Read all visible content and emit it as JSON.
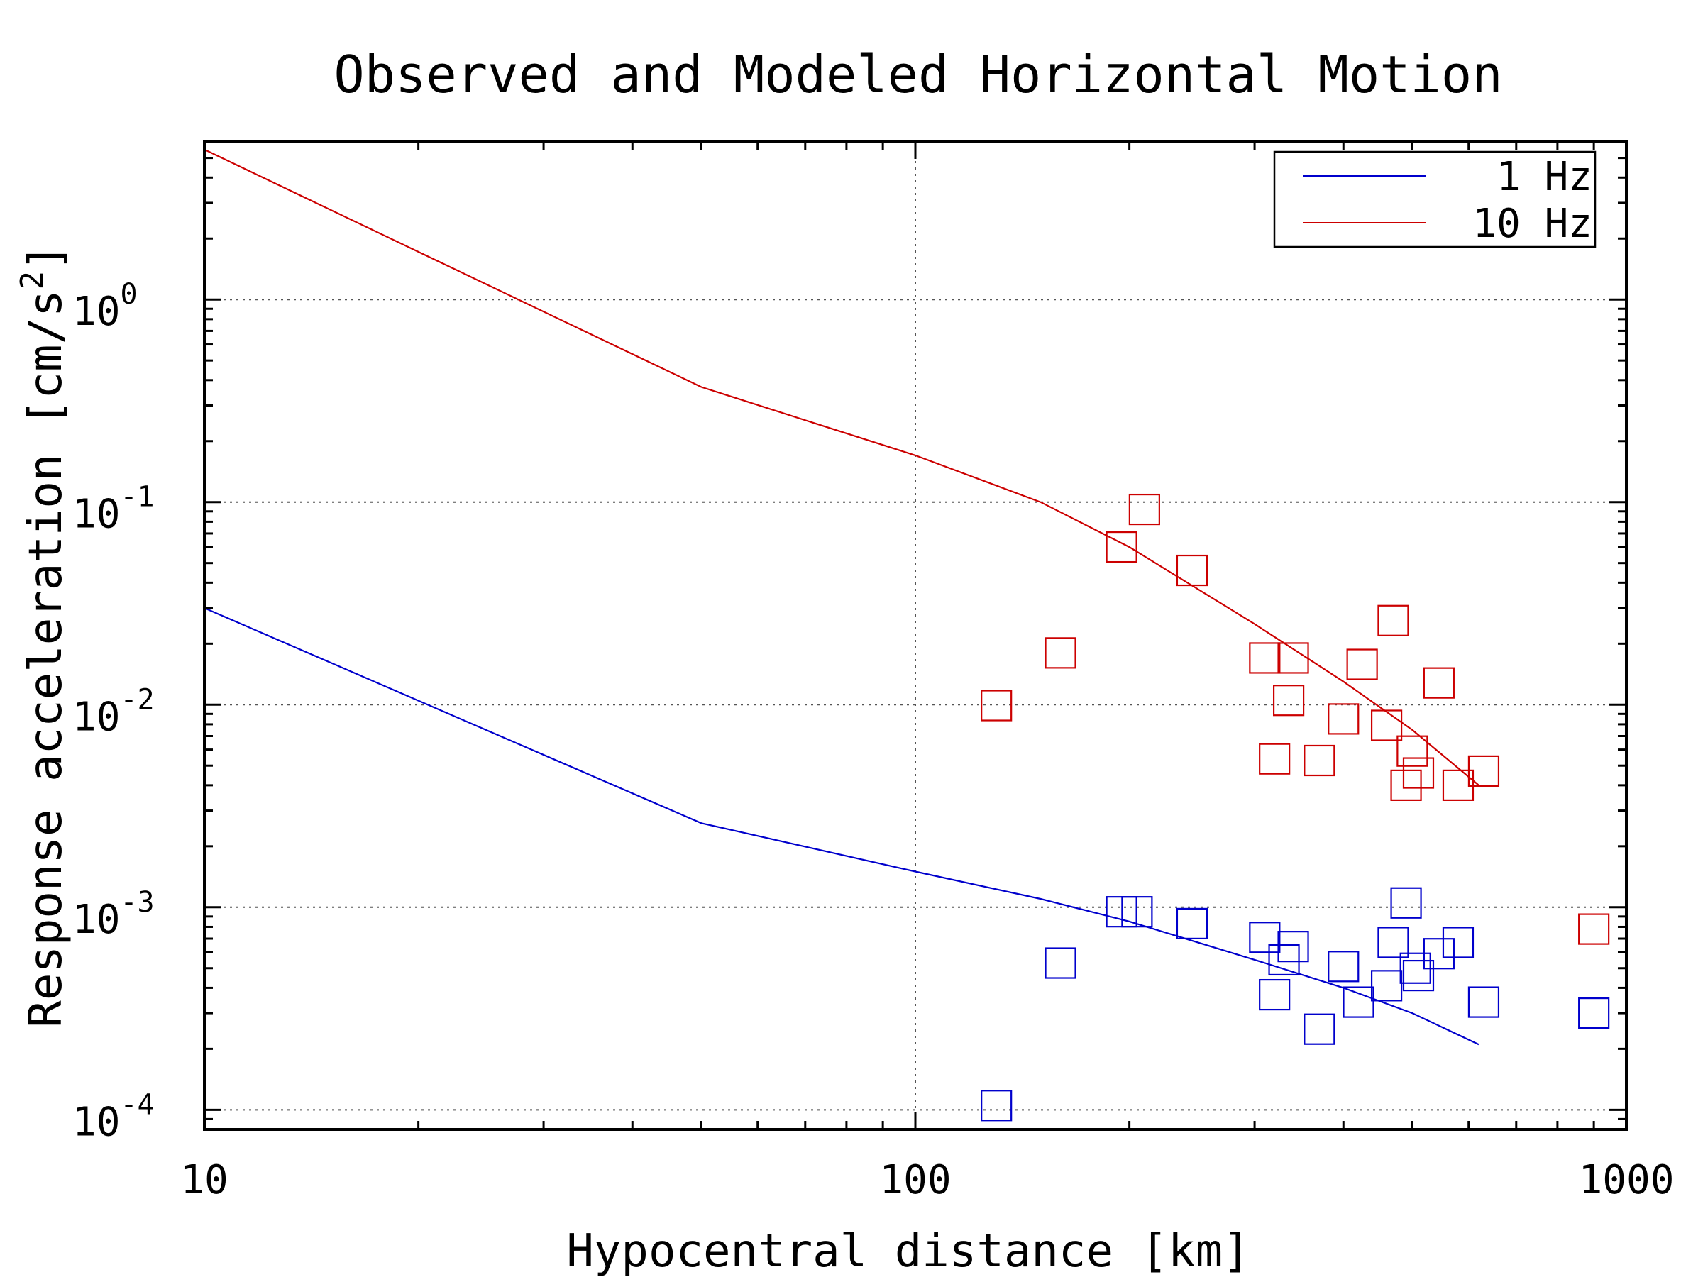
{
  "chart_data": {
    "type": "line",
    "title": "Observed and Modeled Horizontal Motion",
    "xlabel": "Hypocentral distance [km]",
    "ylabel_main": "Response acceleration [cm/s",
    "ylabel_sup": "2",
    "ylabel_tail": "]",
    "xscale": "log",
    "yscale": "log",
    "xlim": [
      10,
      1000
    ],
    "ylim": [
      8e-05,
      6
    ],
    "grid": true,
    "legend_position": "top-right",
    "x_ticks": [
      {
        "value": 10,
        "label": "10"
      },
      {
        "value": 100,
        "label": "100"
      },
      {
        "value": 1000,
        "label": "1000"
      }
    ],
    "y_ticks": [
      {
        "value": 1,
        "base": "10",
        "exp": "0"
      },
      {
        "value": 0.1,
        "base": "10",
        "exp": "-1"
      },
      {
        "value": 0.01,
        "base": "10",
        "exp": "-2"
      },
      {
        "value": 0.001,
        "base": "10",
        "exp": "-3"
      },
      {
        "value": 0.0001,
        "base": "10",
        "exp": "-4"
      }
    ],
    "series": [
      {
        "name": "1 Hz",
        "color": "#0000cc",
        "model_x": [
          10,
          50,
          100,
          150,
          200,
          300,
          400,
          500,
          620
        ],
        "model_y": [
          0.03,
          0.0026,
          0.0015,
          0.0011,
          0.00085,
          0.00055,
          0.0004,
          0.0003,
          0.00021
        ],
        "observed_x": [
          130,
          160,
          195,
          205,
          245,
          310,
          320,
          330,
          340,
          370,
          400,
          420,
          460,
          470,
          490,
          505,
          510,
          545,
          580,
          630,
          900
        ],
        "observed_y": [
          0.000105,
          0.00053,
          0.00095,
          0.00095,
          0.00083,
          0.00071,
          0.00037,
          0.00055,
          0.00064,
          0.00025,
          0.00051,
          0.00034,
          0.00041,
          0.00067,
          0.00105,
          0.0005,
          0.00046,
          0.00059,
          0.00067,
          0.00034,
          0.0003
        ]
      },
      {
        "name": "10 Hz",
        "color": "#cc0000",
        "model_x": [
          10,
          50,
          100,
          150,
          200,
          300,
          400,
          500,
          620
        ],
        "model_y": [
          5.5,
          0.37,
          0.17,
          0.1,
          0.06,
          0.025,
          0.013,
          0.0075,
          0.004
        ],
        "observed_x": [
          130,
          160,
          195,
          210,
          245,
          310,
          320,
          335,
          340,
          370,
          400,
          425,
          460,
          470,
          490,
          500,
          510,
          545,
          580,
          630,
          900
        ],
        "observed_y": [
          0.0099,
          0.018,
          0.06,
          0.092,
          0.046,
          0.017,
          0.0054,
          0.0105,
          0.017,
          0.0053,
          0.0085,
          0.0158,
          0.0079,
          0.026,
          0.004,
          0.0059,
          0.0046,
          0.0128,
          0.004,
          0.0047,
          0.00078
        ]
      }
    ]
  }
}
